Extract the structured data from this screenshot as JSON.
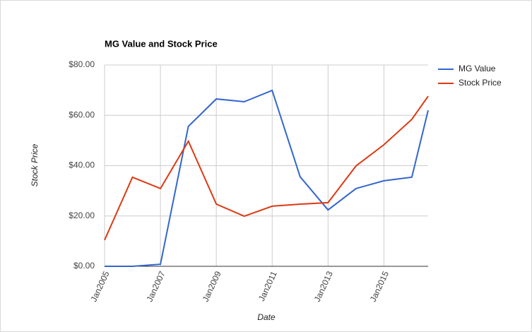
{
  "chart_data": {
    "type": "line",
    "title": "MG Value and Stock Price",
    "x_label": "Date",
    "y_label": "Stock Price",
    "x": [
      "2005-01",
      "2006-01",
      "2007-01",
      "2008-01",
      "2009-01",
      "2010-01",
      "2011-01",
      "2012-01",
      "2013-01",
      "2014-01",
      "2015-01",
      "2016-01",
      "2016-08"
    ],
    "series": [
      {
        "name": "MG Value",
        "color": "#3366cc",
        "values": [
          0,
          0,
          0.8,
          55.6,
          66.5,
          65.4,
          69.9,
          35.6,
          22.4,
          30.9,
          34.0,
          35.4,
          62.0
        ]
      },
      {
        "name": "Stock Price",
        "color": "#dc3912",
        "values": [
          10.4,
          35.4,
          30.9,
          49.7,
          24.7,
          19.9,
          23.9,
          24.7,
          25.3,
          39.9,
          48.3,
          58.4,
          67.6
        ]
      }
    ],
    "xlim": [
      "2005-01",
      "2016-08"
    ],
    "xticks": [
      {
        "value": "2005-01",
        "label": "Jan2005"
      },
      {
        "value": "2007-01",
        "label": "Jan2007"
      },
      {
        "value": "2009-01",
        "label": "Jan2009"
      },
      {
        "value": "2011-01",
        "label": "Jan2011"
      },
      {
        "value": "2013-01",
        "label": "Jan2013"
      },
      {
        "value": "2015-01",
        "label": "Jan2015"
      }
    ],
    "ylim": [
      0,
      80
    ],
    "yticks": [
      {
        "value": 0,
        "label": "$0.00"
      },
      {
        "value": 20,
        "label": "$20.00"
      },
      {
        "value": 40,
        "label": "$40.00"
      },
      {
        "value": 60,
        "label": "$60.00"
      },
      {
        "value": 80,
        "label": "$80.00"
      }
    ],
    "grid": true,
    "legend": "right"
  }
}
